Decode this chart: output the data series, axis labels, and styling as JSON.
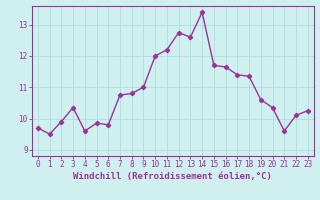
{
  "x": [
    0,
    1,
    2,
    3,
    4,
    5,
    6,
    7,
    8,
    9,
    10,
    11,
    12,
    13,
    14,
    15,
    16,
    17,
    18,
    19,
    20,
    21,
    22,
    23
  ],
  "y": [
    9.7,
    9.5,
    9.9,
    10.35,
    9.6,
    9.85,
    9.8,
    10.75,
    10.8,
    11.0,
    12.0,
    12.2,
    12.75,
    12.6,
    13.4,
    11.7,
    11.65,
    11.4,
    11.35,
    10.6,
    10.35,
    9.6,
    10.1,
    10.25
  ],
  "line_color": "#993399",
  "marker": "D",
  "marker_size": 2.2,
  "linewidth": 1.0,
  "bg_color": "#cff0ee",
  "grid_color": "#aadddd",
  "xlabel": "Windchill (Refroidissement éolien,°C)",
  "ylabel": "",
  "xlim": [
    -0.5,
    23.5
  ],
  "ylim": [
    8.8,
    13.6
  ],
  "yticks": [
    9,
    10,
    11,
    12,
    13
  ],
  "xtick_labels": [
    "0",
    "1",
    "2",
    "3",
    "4",
    "5",
    "6",
    "7",
    "8",
    "9",
    "10",
    "11",
    "12",
    "13",
    "14",
    "15",
    "16",
    "17",
    "18",
    "19",
    "20",
    "21",
    "22",
    "23"
  ],
  "axis_color": "#993399",
  "tick_color": "#993399",
  "label_fontsize": 6.5,
  "tick_fontsize": 5.5,
  "font_family": "monospace"
}
